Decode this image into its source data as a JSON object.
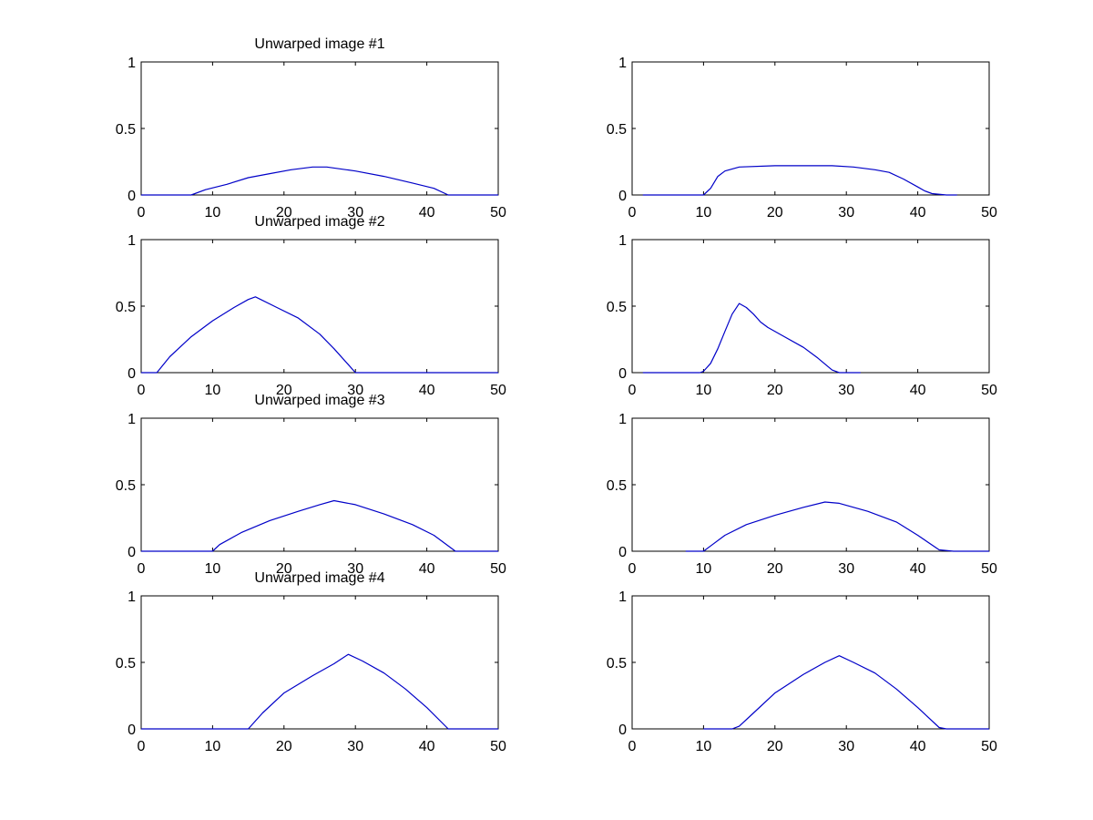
{
  "figure": {
    "background": "#ffffff",
    "line_color": "#0000c8"
  },
  "chart_data": [
    {
      "type": "line",
      "title": "Unwarped image #1",
      "xlim": [
        0,
        50
      ],
      "ylim": [
        0,
        1
      ],
      "xticks": [
        "0",
        "10",
        "20",
        "30",
        "40",
        "50"
      ],
      "yticks": [
        "0",
        "0.5",
        "1"
      ],
      "grid": false,
      "series": [
        {
          "x": [
            0,
            7,
            9,
            12,
            15,
            18,
            21,
            24,
            26,
            30,
            34,
            38,
            41,
            43,
            46,
            50
          ],
          "y": [
            0,
            0,
            0.04,
            0.08,
            0.13,
            0.16,
            0.19,
            0.21,
            0.21,
            0.18,
            0.14,
            0.09,
            0.05,
            0,
            0,
            0
          ]
        }
      ]
    },
    {
      "type": "line",
      "title": "",
      "xlim": [
        0,
        50
      ],
      "ylim": [
        0,
        1
      ],
      "xticks": [
        "0",
        "10",
        "20",
        "30",
        "40",
        "50"
      ],
      "yticks": [
        "0",
        "0.5",
        "1"
      ],
      "grid": false,
      "series": [
        {
          "x": [
            1.5,
            10,
            11,
            12,
            13,
            15,
            20,
            25,
            28,
            31,
            34,
            36,
            38,
            40,
            41,
            42,
            44,
            45.5
          ],
          "y": [
            0,
            0,
            0.05,
            0.14,
            0.18,
            0.21,
            0.22,
            0.22,
            0.22,
            0.21,
            0.19,
            0.17,
            0.12,
            0.06,
            0.03,
            0.01,
            0,
            0
          ]
        }
      ]
    },
    {
      "type": "line",
      "title": "Unwarped image #2",
      "xlim": [
        0,
        50
      ],
      "ylim": [
        0,
        1
      ],
      "xticks": [
        "0",
        "10",
        "20",
        "30",
        "40",
        "50"
      ],
      "yticks": [
        "0",
        "0.5",
        "1"
      ],
      "grid": false,
      "series": [
        {
          "x": [
            0,
            2.2,
            4,
            7,
            10,
            13,
            15,
            16,
            19,
            22,
            25,
            27,
            29,
            30,
            35,
            40,
            45,
            50
          ],
          "y": [
            0,
            0,
            0.12,
            0.27,
            0.39,
            0.49,
            0.55,
            0.57,
            0.49,
            0.41,
            0.29,
            0.18,
            0.06,
            0,
            0,
            0,
            0,
            0
          ]
        }
      ]
    },
    {
      "type": "line",
      "title": "",
      "xlim": [
        0,
        50
      ],
      "ylim": [
        0,
        1
      ],
      "xticks": [
        "0",
        "10",
        "20",
        "30",
        "40",
        "50"
      ],
      "yticks": [
        "0",
        "0.5",
        "1"
      ],
      "grid": false,
      "series": [
        {
          "x": [
            1.5,
            3.5,
            9.5,
            10,
            11,
            12,
            13,
            14,
            15,
            16,
            17,
            18,
            19,
            21,
            24,
            26,
            28,
            29,
            32
          ],
          "y": [
            0,
            0,
            0,
            0.01,
            0.07,
            0.18,
            0.31,
            0.44,
            0.52,
            0.49,
            0.44,
            0.38,
            0.34,
            0.28,
            0.19,
            0.11,
            0.02,
            0,
            0
          ]
        }
      ]
    },
    {
      "type": "line",
      "title": "Unwarped image #3",
      "xlim": [
        0,
        50
      ],
      "ylim": [
        0,
        1
      ],
      "xticks": [
        "0",
        "10",
        "20",
        "30",
        "40",
        "50"
      ],
      "yticks": [
        "0",
        "0.5",
        "1"
      ],
      "grid": false,
      "series": [
        {
          "x": [
            0,
            10,
            11,
            14,
            18,
            22,
            25,
            27,
            30,
            34,
            38,
            41,
            44,
            46,
            50
          ],
          "y": [
            0,
            0,
            0.05,
            0.14,
            0.23,
            0.3,
            0.35,
            0.38,
            0.35,
            0.28,
            0.2,
            0.12,
            0,
            0,
            0
          ]
        }
      ]
    },
    {
      "type": "line",
      "title": "",
      "xlim": [
        0,
        50
      ],
      "ylim": [
        0,
        1
      ],
      "xticks": [
        "0",
        "10",
        "20",
        "30",
        "40",
        "50"
      ],
      "yticks": [
        "0",
        "0.5",
        "1"
      ],
      "grid": false,
      "series": [
        {
          "x": [
            7.5,
            10,
            11,
            13,
            16,
            20,
            24,
            27,
            29,
            33,
            37,
            40,
            43,
            45,
            50
          ],
          "y": [
            0,
            0,
            0.04,
            0.12,
            0.2,
            0.27,
            0.33,
            0.37,
            0.36,
            0.3,
            0.22,
            0.12,
            0.01,
            0,
            0
          ]
        }
      ]
    },
    {
      "type": "line",
      "title": "Unwarped image #4",
      "xlim": [
        0,
        50
      ],
      "ylim": [
        0,
        1
      ],
      "xticks": [
        "0",
        "10",
        "20",
        "30",
        "40",
        "50"
      ],
      "yticks": [
        "0",
        "0.5",
        "1"
      ],
      "grid": false,
      "series": [
        {
          "x": [
            0,
            15,
            17,
            20,
            24,
            27,
            29,
            31,
            34,
            37,
            40,
            43,
            45,
            50
          ],
          "y": [
            0,
            0,
            0.12,
            0.27,
            0.4,
            0.49,
            0.56,
            0.51,
            0.42,
            0.3,
            0.16,
            0,
            0,
            0
          ]
        }
      ]
    },
    {
      "type": "line",
      "title": "",
      "xlim": [
        0,
        50
      ],
      "ylim": [
        0,
        1
      ],
      "xticks": [
        "0",
        "10",
        "20",
        "30",
        "40",
        "50"
      ],
      "yticks": [
        "0",
        "0.5",
        "1"
      ],
      "grid": false,
      "series": [
        {
          "x": [
            10,
            14,
            15,
            17,
            20,
            24,
            27,
            29,
            31,
            34,
            37,
            40,
            43,
            44,
            50
          ],
          "y": [
            0,
            0,
            0.02,
            0.12,
            0.27,
            0.41,
            0.5,
            0.55,
            0.5,
            0.42,
            0.3,
            0.16,
            0.01,
            0,
            0
          ]
        }
      ]
    }
  ]
}
